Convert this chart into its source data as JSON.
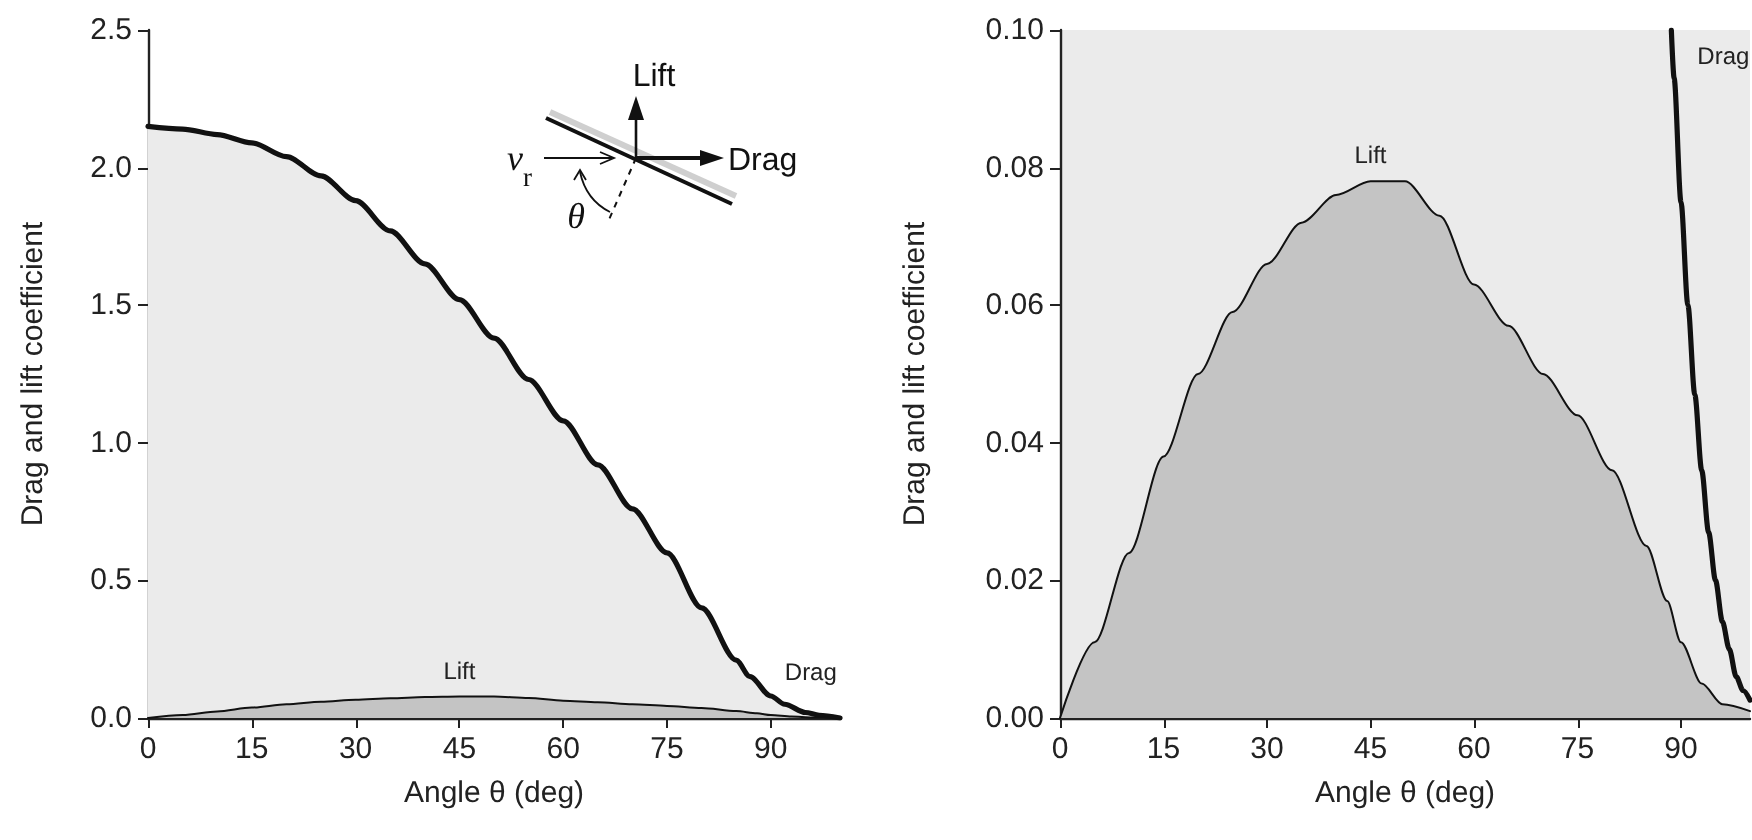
{
  "chart_data": [
    {
      "type": "area",
      "xlabel": "Angle θ (deg)",
      "ylabel": "Drag and lift coefficient",
      "xlim": [
        0,
        100
      ],
      "xticks": [
        0,
        15,
        30,
        45,
        60,
        75,
        90
      ],
      "ylim": [
        0,
        2.5
      ],
      "yticks": [
        {
          "value": 0,
          "label": "0.0"
        },
        {
          "value": 0.5,
          "label": "0.5"
        },
        {
          "value": 1,
          "label": "1.0"
        },
        {
          "value": 1.5,
          "label": "1.5"
        },
        {
          "value": 2,
          "label": "2.0"
        },
        {
          "value": 2.5,
          "label": "2.5"
        }
      ],
      "grid": false,
      "marker": "none",
      "annotations": [
        "Lift",
        "Drag",
        "v$_{r}$",
        "θ"
      ],
      "series": [
        {
          "name": "Drag",
          "color": "#ebebeb",
          "x": [
            0,
            5,
            10,
            15,
            20,
            25,
            30,
            35,
            40,
            45,
            50,
            55,
            60,
            65,
            70,
            75,
            80,
            85,
            87,
            90,
            92,
            95,
            97,
            100
          ],
          "values": [
            2.15,
            2.14,
            2.12,
            2.09,
            2.04,
            1.97,
            1.88,
            1.77,
            1.65,
            1.52,
            1.38,
            1.23,
            1.08,
            0.92,
            0.76,
            0.6,
            0.4,
            0.21,
            0.15,
            0.08,
            0.05,
            0.02,
            0.01,
            0
          ]
        },
        {
          "name": "Lift",
          "color": "#c4c4c4",
          "x": [
            0,
            5,
            10,
            15,
            20,
            25,
            30,
            35,
            40,
            45,
            48,
            50,
            55,
            60,
            65,
            70,
            75,
            80,
            85,
            88,
            90,
            93,
            96,
            100
          ],
          "values": [
            0,
            0.011,
            0.024,
            0.038,
            0.05,
            0.059,
            0.066,
            0.072,
            0.076,
            0.078,
            0.078,
            0.078,
            0.073,
            0.063,
            0.057,
            0.05,
            0.044,
            0.036,
            0.025,
            0.017,
            0.011,
            0.005,
            0.002,
            0.001
          ]
        }
      ]
    },
    {
      "type": "area",
      "xlabel": "Angle θ (deg)",
      "ylabel": "Drag and lift coefficient",
      "xlim": [
        0,
        100
      ],
      "xticks": [
        0,
        15,
        30,
        45,
        60,
        75,
        90
      ],
      "ylim": [
        0,
        0.1
      ],
      "yticks": [
        {
          "value": 0,
          "label": "0.00"
        },
        {
          "value": 0.02,
          "label": "0.02"
        },
        {
          "value": 0.04,
          "label": "0.04"
        },
        {
          "value": 0.06,
          "label": "0.06"
        },
        {
          "value": 0.08,
          "label": "0.08"
        },
        {
          "value": 0.1,
          "label": "0.10"
        }
      ],
      "grid": false,
      "marker": "none",
      "series": [
        {
          "name": "Drag",
          "color": "#ebebeb",
          "x": [
            88.6,
            89,
            90,
            91,
            92,
            93,
            94,
            95,
            96,
            97,
            98,
            99,
            100
          ],
          "values": [
            0.1,
            0.093,
            0.075,
            0.06,
            0.047,
            0.036,
            0.027,
            0.02,
            0.014,
            0.01,
            0.006,
            0.004,
            0.0026
          ]
        },
        {
          "name": "Lift",
          "color": "#c4c4c4",
          "x": [
            0,
            5,
            10,
            15,
            20,
            25,
            30,
            35,
            40,
            45,
            48,
            50,
            55,
            60,
            65,
            70,
            75,
            80,
            85,
            88,
            90,
            93,
            96,
            100
          ],
          "values": [
            0,
            0.011,
            0.024,
            0.038,
            0.05,
            0.059,
            0.066,
            0.072,
            0.076,
            0.078,
            0.078,
            0.078,
            0.073,
            0.063,
            0.057,
            0.05,
            0.044,
            0.036,
            0.025,
            0.017,
            0.011,
            0.005,
            0.002,
            0.001
          ]
        }
      ]
    }
  ]
}
